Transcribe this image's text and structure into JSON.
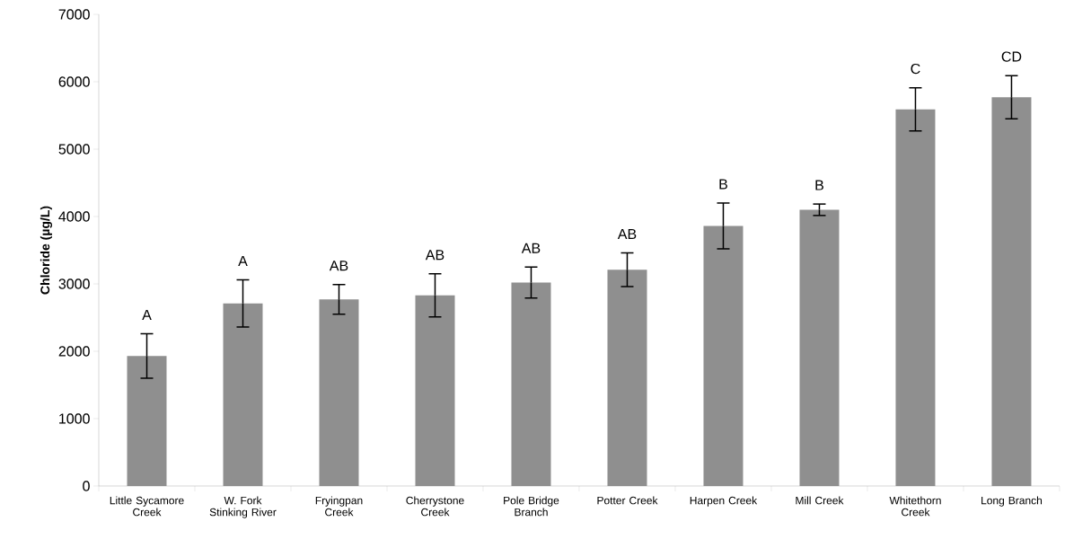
{
  "chart_data": {
    "type": "bar",
    "ylabel": "**Chloride (µg/L)**",
    "categories": [
      "Little Sycamore Creek",
      "W. Fork Stinking River",
      "Fryingpan Creek",
      "Cherrystone Creek",
      "Pole Bridge Branch",
      "Potter Creek",
      "Harpen Creek",
      "Mill Creek",
      "Whitethorn Creek",
      "Long Branch"
    ],
    "values": [
      1930,
      2710,
      2770,
      2830,
      3020,
      3210,
      3860,
      4100,
      5590,
      5770
    ],
    "errors": [
      330,
      350,
      220,
      320,
      230,
      250,
      340,
      85,
      320,
      320
    ],
    "color": "#8f8f8f",
    "ylim": [
      0,
      7000
    ],
    "yticks": [
      0,
      1000,
      2000,
      3000,
      4000,
      5000,
      6000,
      7000
    ],
    "annotations": [
      "A",
      "A",
      "AB",
      "AB",
      "AB",
      "AB",
      "B",
      "B",
      "C",
      "CD"
    ]
  }
}
